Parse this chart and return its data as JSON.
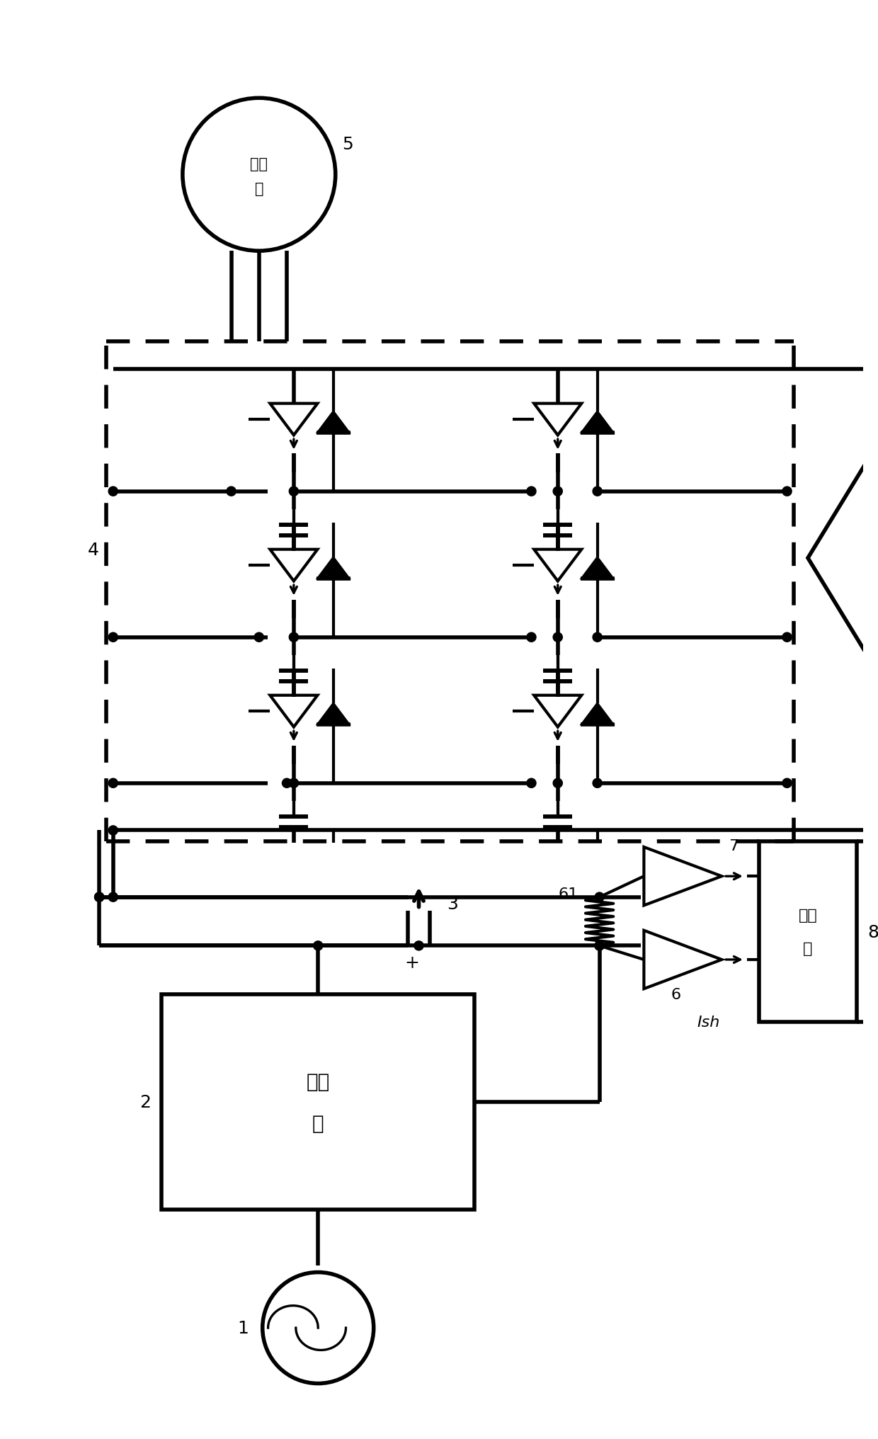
{
  "bg_color": "#ffffff",
  "figsize": [
    6.2,
    10.165
  ],
  "dpi": 200,
  "labels": {
    "motor": "电动机",
    "conv_box": "变换路",
    "ctrl_box": "控制器",
    "num1": "1",
    "num2": "2",
    "num3": "3",
    "num4": "4",
    "num5": "5",
    "num6": "6",
    "num61": "61",
    "num7": "7",
    "num8": "8",
    "Ish": "Ish",
    "plus": "+"
  }
}
